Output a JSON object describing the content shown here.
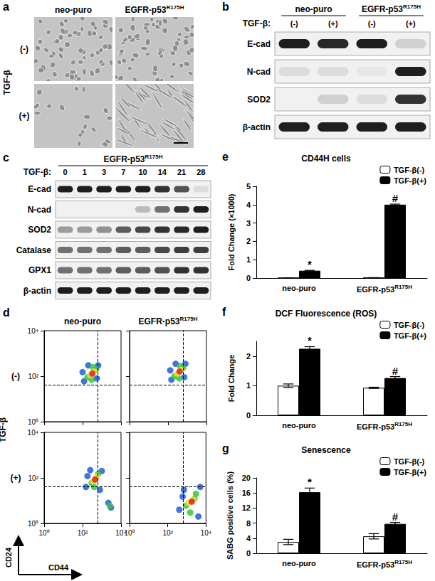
{
  "panels": {
    "a": {
      "label": "a",
      "columns": [
        "neo-puro",
        "EGFR-p53R175H"
      ],
      "row_title": "TGF-β",
      "rows": [
        "(-)",
        "(+)"
      ]
    },
    "b": {
      "label": "b",
      "columns": [
        "neo-puro",
        "EGFR-p53R175H"
      ],
      "treatment": "TGF-β:",
      "lanes": [
        "(-)",
        "(+)",
        "(-)",
        "(+)"
      ],
      "bands": [
        {
          "name": "E-cad",
          "intensity": [
            1,
            0.95,
            1,
            0.15
          ]
        },
        {
          "name": "N-cad",
          "intensity": [
            0.1,
            0.1,
            0.05,
            1
          ]
        },
        {
          "name": "SOD2",
          "intensity": [
            0,
            0.15,
            0.1,
            0.9
          ]
        },
        {
          "name": "β-actin",
          "intensity": [
            1,
            1,
            1,
            1
          ]
        }
      ]
    },
    "c": {
      "label": "c",
      "title": "EGFR-p53R175H",
      "treatment": "TGF-β:",
      "lanes": [
        "0",
        "1",
        "3",
        "7",
        "10",
        "14",
        "21",
        "28"
      ],
      "bands": [
        {
          "name": "E-cad",
          "intensity": [
            1,
            1,
            1,
            1,
            1,
            0.9,
            0.75,
            0.1
          ]
        },
        {
          "name": "N-cad",
          "intensity": [
            0,
            0,
            0,
            0,
            0.25,
            0.6,
            0.9,
            1
          ]
        },
        {
          "name": "SOD2",
          "intensity": [
            0.4,
            0.4,
            0.45,
            0.7,
            0.8,
            0.9,
            0.95,
            1
          ]
        },
        {
          "name": "Catalase",
          "intensity": [
            0.6,
            0.6,
            0.6,
            0.7,
            0.7,
            0.8,
            0.85,
            0.85
          ]
        },
        {
          "name": "GPX1",
          "intensity": [
            0.6,
            0.6,
            0.6,
            0.7,
            0.7,
            0.75,
            0.9,
            0.9
          ]
        },
        {
          "name": "β-actin",
          "intensity": [
            1,
            1,
            1,
            1,
            1,
            1,
            1,
            1
          ]
        }
      ]
    },
    "d": {
      "label": "d",
      "columns": [
        "neo-puro",
        "EGFR-p53R175H"
      ],
      "row_title": "TGF-β",
      "rows": [
        "(-)",
        "(+)"
      ],
      "x_label": "CD44",
      "y_label": "CD24"
    },
    "e": {
      "label": "e"
    },
    "f": {
      "label": "f"
    },
    "g": {
      "label": "g"
    }
  },
  "chart_data": [
    {
      "type": "scatter",
      "log": true,
      "tick_labels": "y",
      "x": [
        120,
        650,
        200,
        550,
        100,
        180,
        500,
        300,
        350,
        250,
        400,
        320
      ],
      "y": [
        60,
        300,
        300,
        80,
        150,
        90,
        200,
        70,
        250,
        110,
        160,
        130
      ],
      "colors": [
        "#1f5fd6",
        "#1f5fd6",
        "#1f5fd6",
        "#1f5fd6",
        "#1f5fd6",
        "#3cc43c",
        "#3cc43c",
        "#3cc43c",
        "#3cc43c",
        "#f0e030",
        "#f0e030",
        "#e02020"
      ],
      "gate_x": 630,
      "gate_y": 40,
      "xlim": [
        1,
        10000
      ],
      "ylim": [
        1,
        10000
      ],
      "xticks": [
        {
          "value": 1,
          "label": "10⁰"
        },
        {
          "value": 100,
          "label": "10²"
        },
        {
          "value": 10000,
          "label": "10⁴"
        }
      ],
      "yticks": [
        {
          "value": 1,
          "label": "10⁰"
        },
        {
          "value": 100,
          "label": "10²"
        },
        {
          "value": 10000,
          "label": "10⁴"
        }
      ]
    },
    {
      "type": "scatter",
      "log": true,
      "tick_labels": false,
      "x": [
        150,
        800,
        250,
        700,
        130,
        220,
        600,
        380,
        420,
        300,
        480,
        400
      ],
      "y": [
        70,
        350,
        350,
        90,
        180,
        100,
        230,
        80,
        280,
        130,
        190,
        160
      ],
      "colors": [
        "#1f5fd6",
        "#1f5fd6",
        "#1f5fd6",
        "#1f5fd6",
        "#1f5fd6",
        "#3cc43c",
        "#3cc43c",
        "#3cc43c",
        "#3cc43c",
        "#f0e030",
        "#f0e030",
        "#e02020"
      ],
      "gate_x": 630,
      "gate_y": 40,
      "xlim": [
        1,
        10000
      ],
      "ylim": [
        1,
        10000
      ],
      "xticks": [
        {
          "value": 1,
          "label": "10⁰"
        },
        {
          "value": 100,
          "label": "10²"
        },
        {
          "value": 10000,
          "label": "10⁴"
        }
      ],
      "yticks": [
        {
          "value": 1,
          "label": "10⁰"
        },
        {
          "value": 100,
          "label": "10²"
        },
        {
          "value": 10000,
          "label": "10⁴"
        }
      ]
    },
    {
      "type": "scatter",
      "log": true,
      "tick_labels": true,
      "x": [
        150,
        1000,
        250,
        800,
        180,
        2200,
        3000,
        300,
        650,
        400,
        2600,
        350,
        550,
        450
      ],
      "y": [
        40,
        200,
        220,
        30,
        120,
        8,
        5,
        60,
        150,
        40,
        6,
        70,
        110,
        85
      ],
      "colors": [
        "#1f5fd6",
        "#1f5fd6",
        "#1f5fd6",
        "#1f5fd6",
        "#1f5fd6",
        "#1f5fd6",
        "#1f5fd6",
        "#3cc43c",
        "#3cc43c",
        "#3cc43c",
        "#3cc43c",
        "#f0e030",
        "#f0e030",
        "#e02020"
      ],
      "gate_x": 630,
      "gate_y": 40,
      "xlim": [
        1,
        10000
      ],
      "ylim": [
        1,
        10000
      ],
      "xticks": [
        {
          "value": 1,
          "label": "10⁰"
        },
        {
          "value": 100,
          "label": "10²"
        },
        {
          "value": 10000,
          "label": "10⁴"
        }
      ],
      "yticks": [
        {
          "value": 1,
          "label": "10⁰"
        },
        {
          "value": 100,
          "label": "10²"
        },
        {
          "value": 10000,
          "label": "10⁴"
        }
      ]
    },
    {
      "type": "scatter",
      "log": true,
      "tick_labels": "x",
      "x": [
        400,
        5000,
        700,
        4000,
        600,
        900,
        3000,
        1500,
        2500,
        1200,
        2200,
        1800
      ],
      "y": [
        4,
        40,
        30,
        2,
        15,
        6,
        20,
        3,
        12,
        8,
        11,
        9
      ],
      "colors": [
        "#1f5fd6",
        "#1f5fd6",
        "#1f5fd6",
        "#1f5fd6",
        "#1f5fd6",
        "#3cc43c",
        "#3cc43c",
        "#3cc43c",
        "#3cc43c",
        "#f0e030",
        "#f0e030",
        "#e02020"
      ],
      "gate_x": 630,
      "gate_y": 40,
      "xlim": [
        1,
        10000
      ],
      "ylim": [
        1,
        10000
      ],
      "xticks": [
        {
          "value": 1,
          "label": "10⁰"
        },
        {
          "value": 100,
          "label": "10²"
        },
        {
          "value": 10000,
          "label": "10⁴"
        }
      ],
      "yticks": [
        {
          "value": 1,
          "label": "10⁰"
        },
        {
          "value": 100,
          "label": "10²"
        },
        {
          "value": 10000,
          "label": "10⁴"
        }
      ]
    },
    {
      "type": "bar",
      "title": "CD44H cells",
      "y_label": "Fold Change (×1000)",
      "categories": [
        "neo-puro",
        "EGFR-p53R175H"
      ],
      "series": [
        {
          "name": "TGF-β(-)",
          "color": "#ffffff",
          "values": [
            0.01,
            0.02
          ],
          "errors": [
            0.005,
            0.005
          ]
        },
        {
          "name": "TGF-β(+)",
          "color": "#000000",
          "values": [
            0.4,
            4.0
          ],
          "errors": [
            0.02,
            0.03
          ],
          "annotations": [
            "*",
            "#"
          ]
        }
      ],
      "ylim": [
        0,
        5
      ],
      "yticks": [
        0,
        1,
        2,
        3,
        4,
        5
      ],
      "legend": "upper right"
    },
    {
      "type": "bar",
      "title": "DCF Fluorescence (ROS)",
      "y_label": "Fold Change",
      "categories": [
        "neo-puro",
        "EGFR-p53R175H"
      ],
      "series": [
        {
          "name": "TGF-β(-)",
          "color": "#ffffff",
          "values": [
            1.0,
            0.93
          ],
          "errors": [
            0.06,
            0.02
          ]
        },
        {
          "name": "TGF-β(+)",
          "color": "#000000",
          "values": [
            2.25,
            1.26
          ],
          "errors": [
            0.07,
            0.05
          ],
          "annotations": [
            "*",
            "#"
          ]
        }
      ],
      "ylim": [
        0,
        2.5
      ],
      "yticks": [
        0,
        1,
        2
      ],
      "legend": "upper right"
    },
    {
      "type": "bar",
      "title": "Senescence",
      "y_label": "SABG positive cells (%)",
      "categories": [
        "neo-puro",
        "EGFR-p53R175H"
      ],
      "series": [
        {
          "name": "TGF-β(-)",
          "color": "#ffffff",
          "values": [
            3.0,
            4.5
          ],
          "errors": [
            0.7,
            0.7
          ]
        },
        {
          "name": "TGF-β(+)",
          "color": "#000000",
          "values": [
            16.2,
            7.8
          ],
          "errors": [
            1.1,
            0.4
          ],
          "annotations": [
            "*",
            "#"
          ]
        }
      ],
      "ylim": [
        0,
        20
      ],
      "yticks": [
        0,
        4,
        8,
        12,
        16,
        20
      ],
      "legend": "upper right"
    }
  ]
}
